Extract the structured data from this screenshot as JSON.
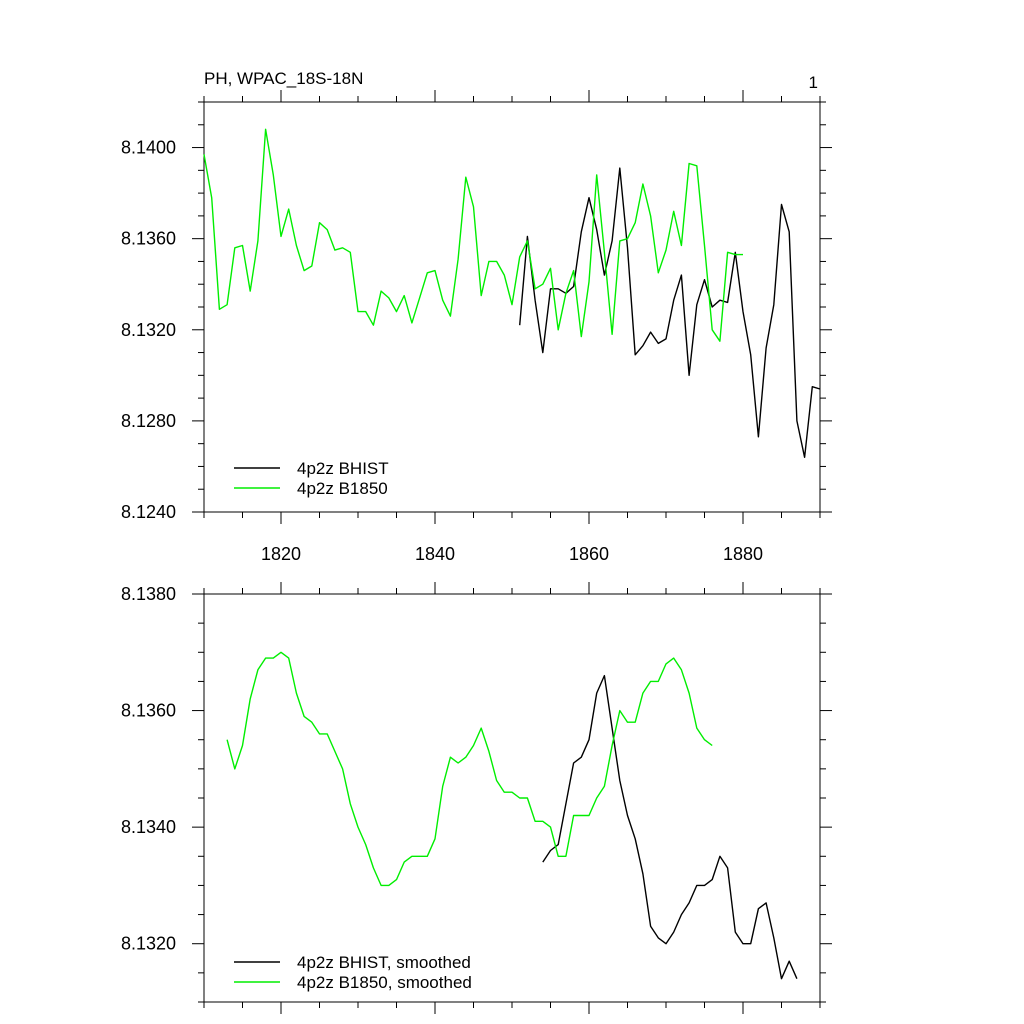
{
  "header": {
    "title_left": "PH, WPAC_18S-18N",
    "title_right": "1"
  },
  "colors": {
    "bhist": "#000000",
    "b1850": "#00ee00"
  },
  "chart_data": [
    {
      "type": "line",
      "title": "PH, WPAC_18S-18N",
      "xlabel": "",
      "ylabel": "",
      "xlim": [
        1810,
        1890
      ],
      "ylim": [
        8.124,
        8.142
      ],
      "yticks": [
        "8.1240",
        "8.1280",
        "8.1320",
        "8.1360",
        "8.1400"
      ],
      "xticks": [
        "1820",
        "1840",
        "1860",
        "1880"
      ],
      "legend_position": "bottom-left",
      "grid": false,
      "series": [
        {
          "name": "4p2z BHIST",
          "x": [
            1851,
            1852,
            1853,
            1854,
            1855,
            1856,
            1857,
            1858,
            1859,
            1860,
            1861,
            1862,
            1863,
            1864,
            1865,
            1866,
            1867,
            1868,
            1869,
            1870,
            1871,
            1872,
            1873,
            1874,
            1875,
            1876,
            1877,
            1878,
            1879,
            1880,
            1881,
            1882,
            1883,
            1884,
            1885,
            1886,
            1887,
            1888,
            1889,
            1890
          ],
          "y": [
            8.1322,
            8.1361,
            8.1333,
            8.131,
            8.1338,
            8.1338,
            8.1336,
            8.1339,
            8.1363,
            8.1378,
            8.1364,
            8.1344,
            8.1359,
            8.1391,
            8.1356,
            8.1309,
            8.1313,
            8.1319,
            8.1314,
            8.1316,
            8.1333,
            8.1344,
            8.13,
            8.1331,
            8.1342,
            8.133,
            8.1333,
            8.1332,
            8.1354,
            8.1328,
            8.1309,
            8.1273,
            8.1312,
            8.1331,
            8.1375,
            8.1363,
            8.128,
            8.1264,
            8.1295,
            8.1294
          ]
        },
        {
          "name": "4p2z B1850",
          "x": [
            1810,
            1811,
            1812,
            1813,
            1814,
            1815,
            1816,
            1817,
            1818,
            1819,
            1820,
            1821,
            1822,
            1823,
            1824,
            1825,
            1826,
            1827,
            1828,
            1829,
            1830,
            1831,
            1832,
            1833,
            1834,
            1835,
            1836,
            1837,
            1838,
            1839,
            1840,
            1841,
            1842,
            1843,
            1844,
            1845,
            1846,
            1847,
            1848,
            1849,
            1850,
            1851,
            1852,
            1853,
            1854,
            1855,
            1856,
            1857,
            1858,
            1859,
            1860,
            1861,
            1862,
            1863,
            1864,
            1865,
            1866,
            1867,
            1868,
            1869,
            1870,
            1871,
            1872,
            1873,
            1874,
            1875,
            1876,
            1877,
            1878,
            1879,
            1880
          ],
          "y": [
            8.1397,
            8.1378,
            8.1329,
            8.1331,
            8.1356,
            8.1357,
            8.1337,
            8.1359,
            8.1408,
            8.1388,
            8.1361,
            8.1373,
            8.1357,
            8.1346,
            8.1348,
            8.1367,
            8.1364,
            8.1355,
            8.1356,
            8.1354,
            8.1328,
            8.1328,
            8.1322,
            8.1337,
            8.1334,
            8.1328,
            8.1335,
            8.1323,
            8.1334,
            8.1345,
            8.1346,
            8.1333,
            8.1326,
            8.1351,
            8.1387,
            8.1374,
            8.1335,
            8.135,
            8.135,
            8.1344,
            8.1331,
            8.1352,
            8.1359,
            8.1338,
            8.134,
            8.1347,
            8.132,
            8.1336,
            8.1346,
            8.1317,
            8.1341,
            8.1388,
            8.1354,
            8.1318,
            8.1359,
            8.136,
            8.1367,
            8.1384,
            8.137,
            8.1345,
            8.1355,
            8.1372,
            8.1357,
            8.1393,
            8.1392,
            8.1357,
            8.132,
            8.1315,
            8.1354,
            8.1353,
            8.1353
          ]
        }
      ]
    },
    {
      "type": "line",
      "title": "",
      "xlabel": "",
      "ylabel": "",
      "xlim": [
        1810,
        1890
      ],
      "ylim": [
        8.131,
        8.138
      ],
      "yticks": [
        "8.1320",
        "8.1340",
        "8.1360",
        "8.1380"
      ],
      "xticks": [],
      "legend_position": "bottom-left",
      "grid": false,
      "series": [
        {
          "name": "4p2z BHIST, smoothed",
          "x": [
            1854,
            1855,
            1856,
            1857,
            1858,
            1859,
            1860,
            1861,
            1862,
            1863,
            1864,
            1865,
            1866,
            1867,
            1868,
            1869,
            1870,
            1871,
            1872,
            1873,
            1874,
            1875,
            1876,
            1877,
            1878,
            1879,
            1880,
            1881,
            1882,
            1883,
            1884,
            1885,
            1886,
            1887
          ],
          "y": [
            8.1334,
            8.1336,
            8.1337,
            8.1344,
            8.1351,
            8.1352,
            8.1355,
            8.1363,
            8.1366,
            8.1357,
            8.1348,
            8.1342,
            8.1338,
            8.1332,
            8.1323,
            8.1321,
            8.132,
            8.1322,
            8.1325,
            8.1327,
            8.133,
            8.133,
            8.1331,
            8.1335,
            8.1333,
            8.1322,
            8.132,
            8.132,
            8.1326,
            8.1327,
            8.1321,
            8.1314,
            8.1317,
            8.1314
          ]
        },
        {
          "name": "4p2z B1850, smoothed",
          "x": [
            1813,
            1814,
            1815,
            1816,
            1817,
            1818,
            1819,
            1820,
            1821,
            1822,
            1823,
            1824,
            1825,
            1826,
            1827,
            1828,
            1829,
            1830,
            1831,
            1832,
            1833,
            1834,
            1835,
            1836,
            1837,
            1838,
            1839,
            1840,
            1841,
            1842,
            1843,
            1844,
            1845,
            1846,
            1847,
            1848,
            1849,
            1850,
            1851,
            1852,
            1853,
            1854,
            1855,
            1856,
            1857,
            1858,
            1859,
            1860,
            1861,
            1862,
            1863,
            1864,
            1865,
            1866,
            1867,
            1868,
            1869,
            1870,
            1871,
            1872,
            1873,
            1874,
            1875,
            1876
          ],
          "y": [
            8.1355,
            8.135,
            8.1354,
            8.1362,
            8.1367,
            8.1369,
            8.1369,
            8.137,
            8.1369,
            8.1363,
            8.1359,
            8.1358,
            8.1356,
            8.1356,
            8.1353,
            8.135,
            8.1344,
            8.134,
            8.1337,
            8.1333,
            8.133,
            8.133,
            8.1331,
            8.1334,
            8.1335,
            8.1335,
            8.1335,
            8.1338,
            8.1347,
            8.1352,
            8.1351,
            8.1352,
            8.1354,
            8.1357,
            8.1353,
            8.1348,
            8.1346,
            8.1346,
            8.1345,
            8.1345,
            8.1341,
            8.1341,
            8.134,
            8.1335,
            8.1335,
            8.1342,
            8.1342,
            8.1342,
            8.1345,
            8.1347,
            8.1354,
            8.136,
            8.1358,
            8.1358,
            8.1363,
            8.1365,
            8.1365,
            8.1368,
            8.1369,
            8.1367,
            8.1363,
            8.1357,
            8.1355,
            8.1354
          ]
        }
      ]
    }
  ]
}
